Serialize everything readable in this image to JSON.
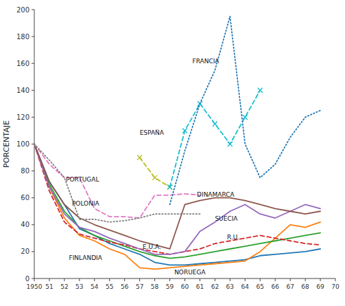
{
  "chart_data": {
    "type": "line",
    "y_label": "PORCENTAJE",
    "xlim": [
      1950,
      1970
    ],
    "ylim": [
      0,
      200
    ],
    "xticks": [
      1950,
      {
        "value": 1951,
        "label": "51"
      },
      {
        "value": 1952,
        "label": "52"
      },
      {
        "value": 1953,
        "label": "53"
      },
      {
        "value": 1954,
        "label": "54"
      },
      {
        "value": 1955,
        "label": "55"
      },
      {
        "value": 1956,
        "label": "56"
      },
      {
        "value": 1957,
        "label": "57"
      },
      {
        "value": 1958,
        "label": "58"
      },
      {
        "value": 1959,
        "label": "59"
      },
      {
        "value": 1960,
        "label": "60"
      },
      {
        "value": 1961,
        "label": "61"
      },
      {
        "value": 1962,
        "label": "62"
      },
      {
        "value": 1963,
        "label": "63"
      },
      {
        "value": 1964,
        "label": "64"
      },
      {
        "value": 1965,
        "label": "65"
      },
      {
        "value": 1966,
        "label": "66"
      },
      {
        "value": 1967,
        "label": "67"
      },
      {
        "value": 1968,
        "label": "68"
      },
      {
        "value": 1969,
        "label": "69"
      },
      {
        "value": 1970,
        "label": "70"
      }
    ],
    "yticks": [
      0,
      20,
      40,
      60,
      80,
      100,
      120,
      140,
      160,
      180,
      200
    ],
    "grid": false,
    "x": [
      1950,
      1951,
      1952,
      1953,
      1954,
      1955,
      1956,
      1957,
      1958,
      1959,
      1960,
      1961,
      1962,
      1963,
      1964,
      1965,
      1966,
      1967,
      1968,
      1969
    ],
    "series": [
      {
        "line_style": "solid",
        "values": [
          100,
          72,
          55,
          37,
          32,
          26,
          22,
          18,
          12,
          10,
          10,
          11,
          12,
          13,
          14,
          17,
          18,
          19,
          20,
          22
        ]
      },
      {
        "line_style": "solid",
        "values": [
          100,
          68,
          45,
          32,
          28,
          22,
          18,
          8,
          7,
          8,
          9,
          10,
          11,
          12,
          13,
          20,
          30,
          40,
          38,
          42
        ]
      },
      {
        "line_style": "solid",
        "values": [
          100,
          70,
          50,
          38,
          32,
          28,
          24,
          20,
          17,
          15,
          16,
          18,
          20,
          22,
          24,
          26,
          28,
          30,
          32,
          34
        ]
      },
      {
        "line_style": "dashed",
        "values": [
          100,
          65,
          42,
          33,
          30,
          27,
          25,
          22,
          20,
          18,
          20,
          22,
          26,
          28,
          30,
          32,
          30,
          28,
          26,
          25
        ]
      },
      {
        "line_style": "solid",
        "values": [
          100,
          68,
          48,
          38,
          35,
          30,
          26,
          22,
          18,
          18,
          20,
          35,
          42,
          50,
          55,
          48,
          45,
          50,
          55,
          52
        ]
      },
      {
        "line_style": "solid",
        "values": [
          100,
          72,
          55,
          45,
          40,
          36,
          32,
          28,
          25,
          22,
          55,
          58,
          60,
          60,
          58,
          55,
          52,
          50,
          48,
          50
        ]
      },
      {
        "line_style": "dashed",
        "x": [
          1950,
          1951,
          1952,
          1953,
          1954,
          1955,
          1956,
          1957,
          1958,
          1959,
          1960,
          1961
        ],
        "values": [
          100,
          85,
          75,
          75,
          52,
          46,
          46,
          45,
          62,
          62,
          63,
          62
        ]
      },
      {
        "line_style": "dotted",
        "x": [
          1950,
          1951,
          1952,
          1953,
          1954,
          1955,
          1956,
          1957,
          1958,
          1959,
          1960,
          1961
        ],
        "values": [
          100,
          88,
          75,
          44,
          44,
          42,
          43,
          45,
          48,
          48,
          48,
          48
        ]
      },
      {
        "line_style": "dashed",
        "marker": "x",
        "x": [
          1957,
          1958,
          1959
        ],
        "values": [
          90,
          75,
          68
        ]
      },
      {
        "line_style": "dashed",
        "marker": "x",
        "x": [
          1959,
          1960,
          1961,
          1962,
          1963,
          1964,
          1965
        ],
        "values": [
          68,
          110,
          130,
          115,
          100,
          120,
          140
        ]
      },
      {
        "line_style": "dotted",
        "x": [
          1959,
          1960,
          1961,
          1962,
          1963,
          1964,
          1965,
          1966,
          1967,
          1968,
          1969
        ],
        "values": [
          55,
          95,
          130,
          155,
          195,
          100,
          75,
          85,
          105,
          120,
          125
        ]
      }
    ],
    "annotations": [
      {
        "text": "FINLANDIA",
        "x": 1952.3,
        "y": 14
      },
      {
        "text": "NORUEGA",
        "x": 1959.3,
        "y": 3
      },
      {
        "text": "E.U.A.",
        "x": 1957.2,
        "y": 22
      },
      {
        "text": "R.U.",
        "x": 1962.8,
        "y": 29
      },
      {
        "text": "SUECIA",
        "x": 1962.0,
        "y": 43
      },
      {
        "text": "DINAMARCA",
        "x": 1960.8,
        "y": 61
      },
      {
        "text": "PORTUGAL",
        "x": 1952.1,
        "y": 72
      },
      {
        "text": "POLONIA",
        "x": 1952.5,
        "y": 54
      },
      {
        "text": "ESPAÑA",
        "x": 1957.0,
        "y": 107
      },
      {
        "text": "FRANCIA",
        "x": 1960.5,
        "y": 160
      }
    ]
  }
}
